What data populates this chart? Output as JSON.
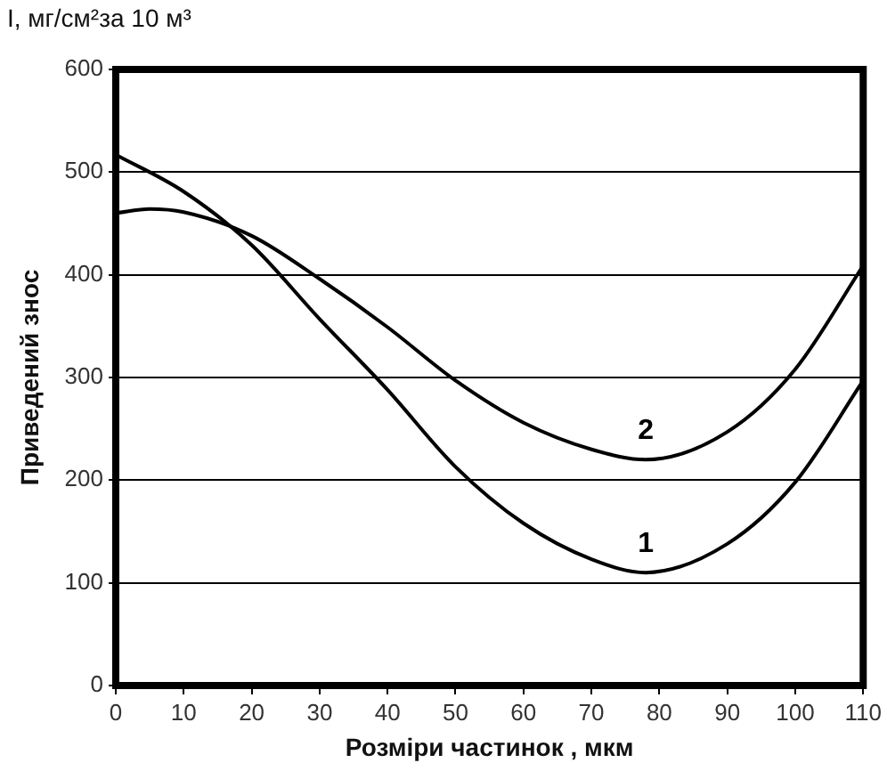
{
  "chart_data": {
    "type": "line",
    "xlabel": "Розміри частинок , мкм",
    "ylabel": "Приведений знос",
    "annotations": [
      "I, мг/см²за 10 м³"
    ],
    "xlim": [
      0,
      110
    ],
    "xticks": [
      0,
      10,
      20,
      30,
      40,
      50,
      60,
      70,
      80,
      90,
      100,
      110
    ],
    "ylim": [
      0,
      600
    ],
    "yticks": [
      0,
      100,
      200,
      300,
      400,
      500,
      600
    ],
    "grid": "y",
    "legend": false,
    "marker": "none",
    "line_style": "solid",
    "series": [
      {
        "name": "1",
        "color": "#000000",
        "x": [
          0,
          10,
          20,
          30,
          40,
          50,
          60,
          70,
          78,
          90,
          100,
          110
        ],
        "values": [
          517,
          481,
          429,
          357,
          288,
          213,
          158,
          123,
          110,
          138,
          198,
          297
        ]
      },
      {
        "name": "2",
        "color": "#000000",
        "x": [
          0,
          5,
          10,
          20,
          30,
          40,
          50,
          60,
          70,
          78,
          90,
          100,
          110
        ],
        "values": [
          460,
          464,
          461,
          438,
          396,
          349,
          297,
          256,
          230,
          220,
          247,
          308,
          409
        ]
      }
    ]
  }
}
